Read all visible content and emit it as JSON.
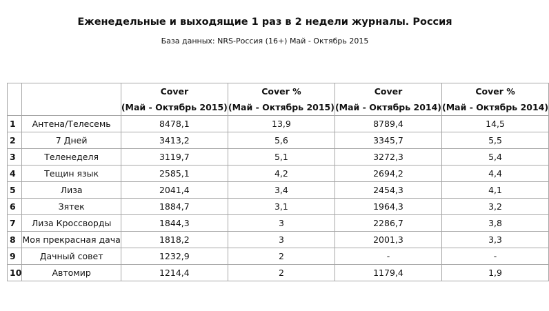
{
  "title": "Еженедельные и выходящие 1 раз в 2 недели журналы. Россия",
  "subtitle": "База данных: NRS-Россия (16+) Май - Октябрь 2015",
  "table": {
    "headers": [
      {
        "line1": "Cover",
        "line2": "(Май - Октябрь 2015)"
      },
      {
        "line1": "Cover %",
        "line2": "(Май - Октябрь 2015)"
      },
      {
        "line1": "Cover",
        "line2": "(Май - Октябрь 2014)"
      },
      {
        "line1": "Cover %",
        "line2": "(Май - Октябрь 2014)"
      }
    ],
    "rows": [
      {
        "num": "1",
        "name": "Антена/Телесемь",
        "c2015": "8478,1",
        "p2015": "13,9",
        "c2014": "8789,4",
        "p2014": "14,5"
      },
      {
        "num": "2",
        "name": "7 Дней",
        "c2015": "3413,2",
        "p2015": "5,6",
        "c2014": "3345,7",
        "p2014": "5,5"
      },
      {
        "num": "3",
        "name": "Теленеделя",
        "c2015": "3119,7",
        "p2015": "5,1",
        "c2014": "3272,3",
        "p2014": "5,4"
      },
      {
        "num": "4",
        "name": "Тещин язык",
        "c2015": "2585,1",
        "p2015": "4,2",
        "c2014": "2694,2",
        "p2014": "4,4"
      },
      {
        "num": "5",
        "name": "Лиза",
        "c2015": "2041,4",
        "p2015": "3,4",
        "c2014": "2454,3",
        "p2014": "4,1"
      },
      {
        "num": "6",
        "name": "Зятек",
        "c2015": "1884,7",
        "p2015": "3,1",
        "c2014": "1964,3",
        "p2014": "3,2"
      },
      {
        "num": "7",
        "name": "Лиза Кроссворды",
        "c2015": "1844,3",
        "p2015": "3",
        "c2014": "2286,7",
        "p2014": "3,8"
      },
      {
        "num": "8",
        "name": "Моя прекрасная дача",
        "c2015": "1818,2",
        "p2015": "3",
        "c2014": "2001,3",
        "p2014": "3,3"
      },
      {
        "num": "9",
        "name": "Дачный совет",
        "c2015": "1232,9",
        "p2015": "2",
        "c2014": "-",
        "p2014": "-"
      },
      {
        "num": "10",
        "name": "Автомир",
        "c2015": "1214,4",
        "p2015": "2",
        "c2014": "1179,4",
        "p2014": "1,9"
      }
    ]
  }
}
